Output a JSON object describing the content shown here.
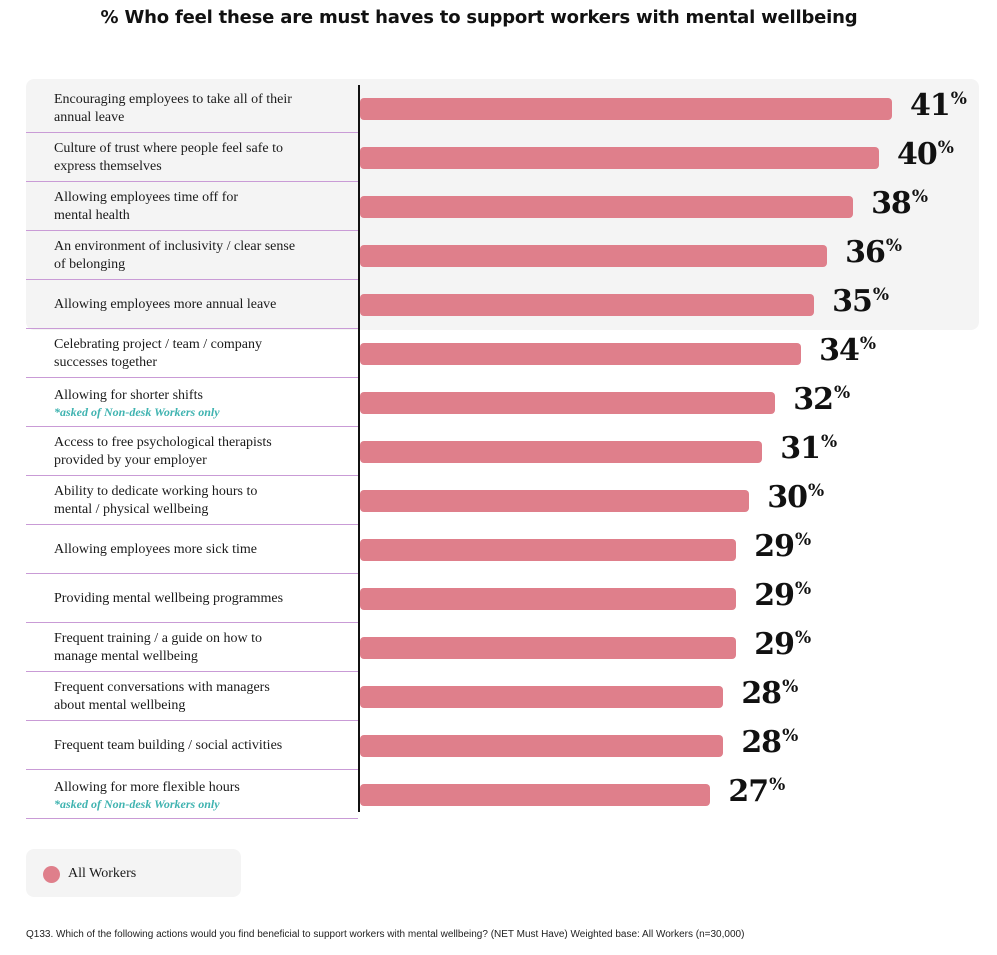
{
  "chart_data": {
    "type": "bar",
    "orientation": "horizontal",
    "title": "% Who feel these are must haves to support workers with mental wellbeing",
    "xlim": [
      0,
      41
    ],
    "legend_placement": "bottom-left",
    "unit_suffix": "%",
    "categories": [
      {
        "label": "Encouraging employees to take all of their\nannual leave",
        "note": ""
      },
      {
        "label": "Culture of trust where people feel safe to\nexpress themselves",
        "note": ""
      },
      {
        "label": "Allowing employees time off for\nmental health",
        "note": ""
      },
      {
        "label": "An environment of inclusivity / clear sense\nof belonging",
        "note": ""
      },
      {
        "label": "Allowing employees more annual leave",
        "note": ""
      },
      {
        "label": "Celebrating project / team / company\nsuccesses together",
        "note": ""
      },
      {
        "label": "Allowing for shorter shifts",
        "note": "*asked of Non-desk Workers only"
      },
      {
        "label": "Access to free psychological therapists\nprovided by your employer",
        "note": ""
      },
      {
        "label": "Ability to dedicate working hours to\nmental / physical wellbeing",
        "note": ""
      },
      {
        "label": "Allowing employees more sick time",
        "note": ""
      },
      {
        "label": "Providing mental wellbeing programmes",
        "note": ""
      },
      {
        "label": "Frequent training / a guide on how to\nmanage mental wellbeing",
        "note": ""
      },
      {
        "label": "Frequent conversations with managers\nabout mental wellbeing",
        "note": ""
      },
      {
        "label": "Frequent team building / social activities",
        "note": ""
      },
      {
        "label": "Allowing for more flexible hours",
        "note": "*asked of Non-desk Workers only"
      }
    ],
    "series": [
      {
        "name": "All Workers",
        "color": "#df7f8b",
        "values": [
          41,
          40,
          38,
          36,
          35,
          34,
          32,
          31,
          30,
          29,
          29,
          29,
          28,
          28,
          27
        ]
      }
    ],
    "highlighted_rows": 5
  },
  "legend": {
    "label": "All Workers",
    "color": "#df7f8b"
  },
  "footnote": "Q133. Which of the following actions would you find beneficial to support workers with mental wellbeing? (NET Must Have) Weighted base: All Workers (n=30,000)"
}
